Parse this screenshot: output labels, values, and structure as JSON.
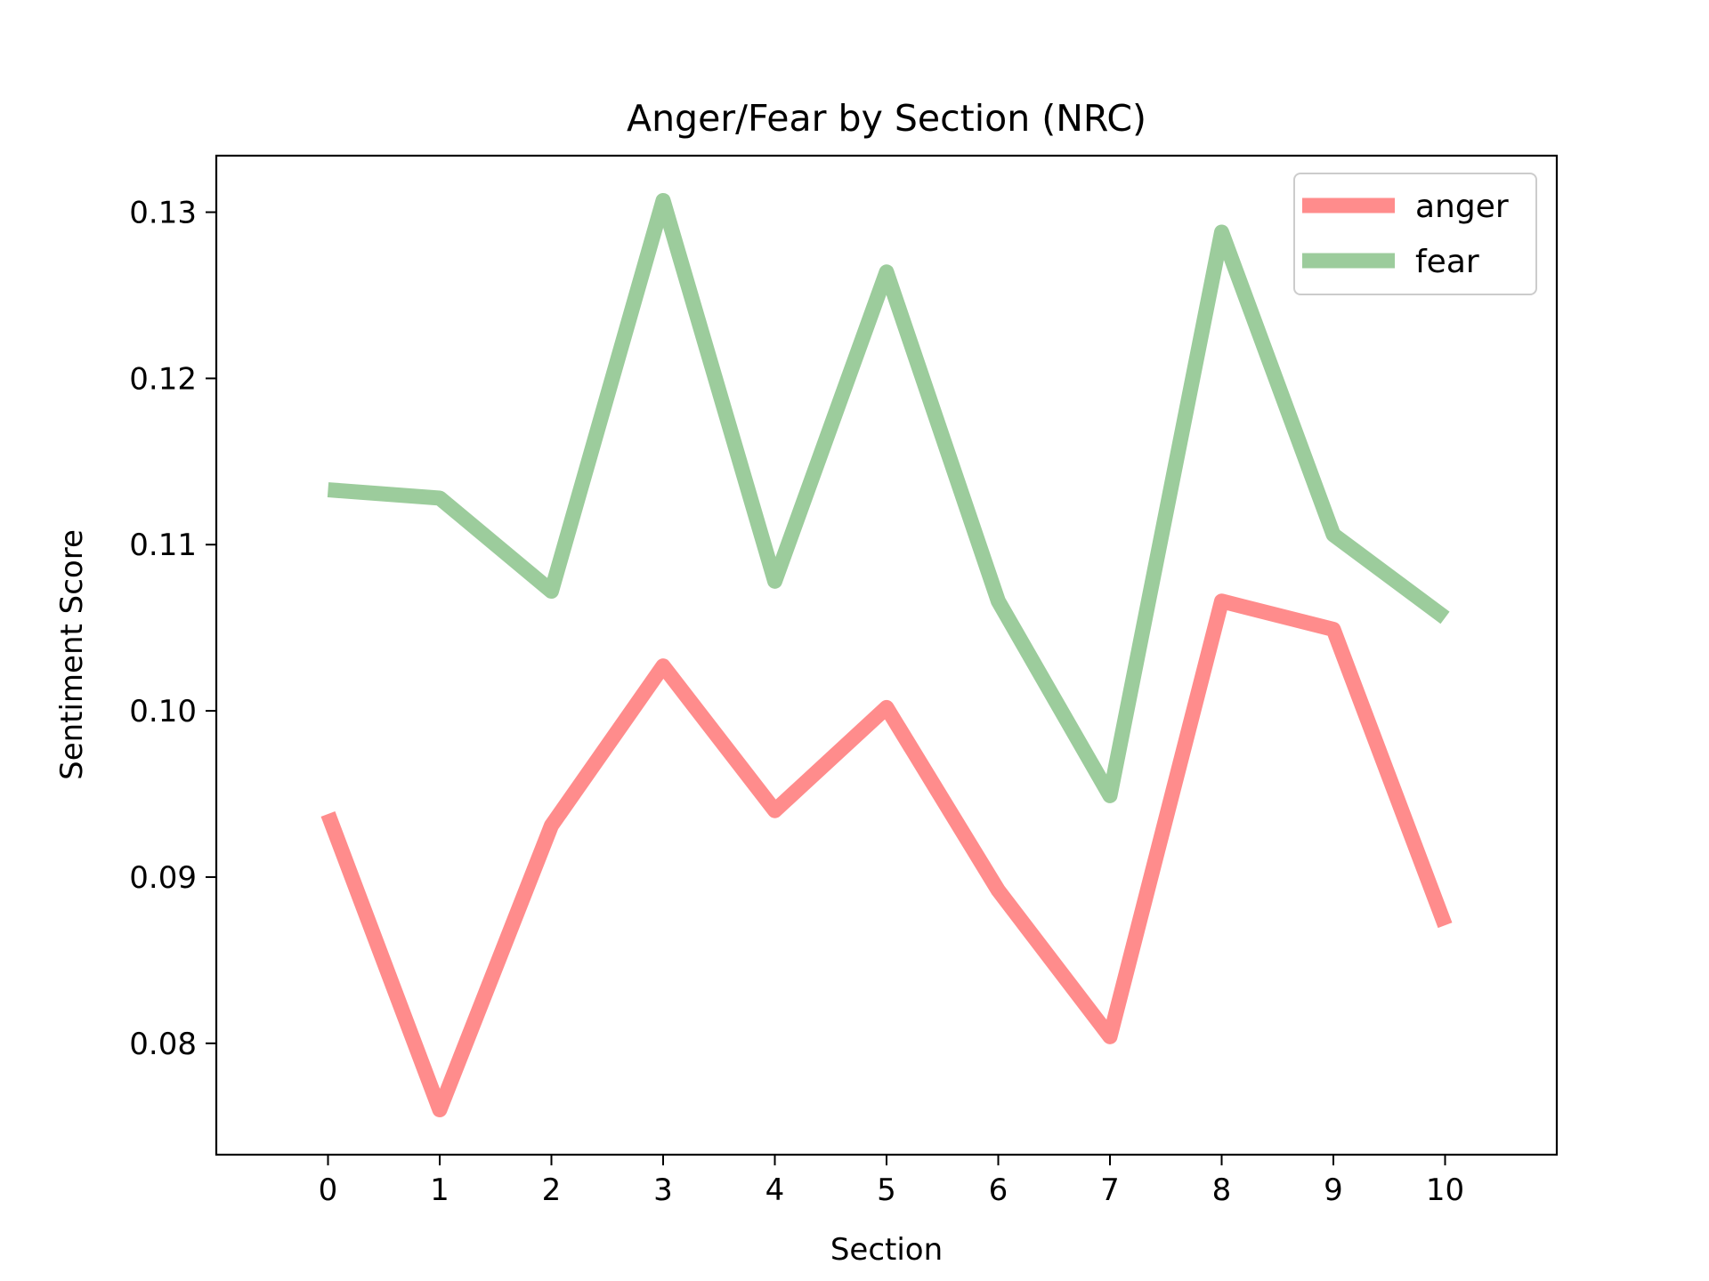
{
  "chart_data": {
    "type": "line",
    "title": "Anger/Fear by Section (NRC)",
    "xlabel": "Section",
    "ylabel": "Sentiment Score",
    "x": [
      0,
      1,
      2,
      3,
      4,
      5,
      6,
      7,
      8,
      9,
      10
    ],
    "xticks": [
      "0",
      "1",
      "2",
      "3",
      "4",
      "5",
      "6",
      "7",
      "8",
      "9",
      "10"
    ],
    "xlim": [
      -1,
      11
    ],
    "ylim": [
      0.0733,
      0.1334
    ],
    "yticks": [
      "0.08",
      "0.09",
      "0.10",
      "0.11",
      "0.12",
      "0.13"
    ],
    "ytick_values": [
      0.08,
      0.09,
      0.1,
      0.11,
      0.12,
      0.13
    ],
    "grid": false,
    "legend_position": "top-right",
    "series": [
      {
        "name": "anger",
        "color": "#ff8c8c",
        "values": [
          0.0938,
          0.076,
          0.0931,
          0.1027,
          0.094,
          0.1002,
          0.0892,
          0.0804,
          0.1066,
          0.1049,
          0.0871
        ]
      },
      {
        "name": "fear",
        "color": "#9ccc9c",
        "values": [
          0.1133,
          0.1128,
          0.1072,
          0.1307,
          0.1078,
          0.1264,
          0.1066,
          0.0949,
          0.1288,
          0.1106,
          0.1056
        ]
      }
    ]
  }
}
